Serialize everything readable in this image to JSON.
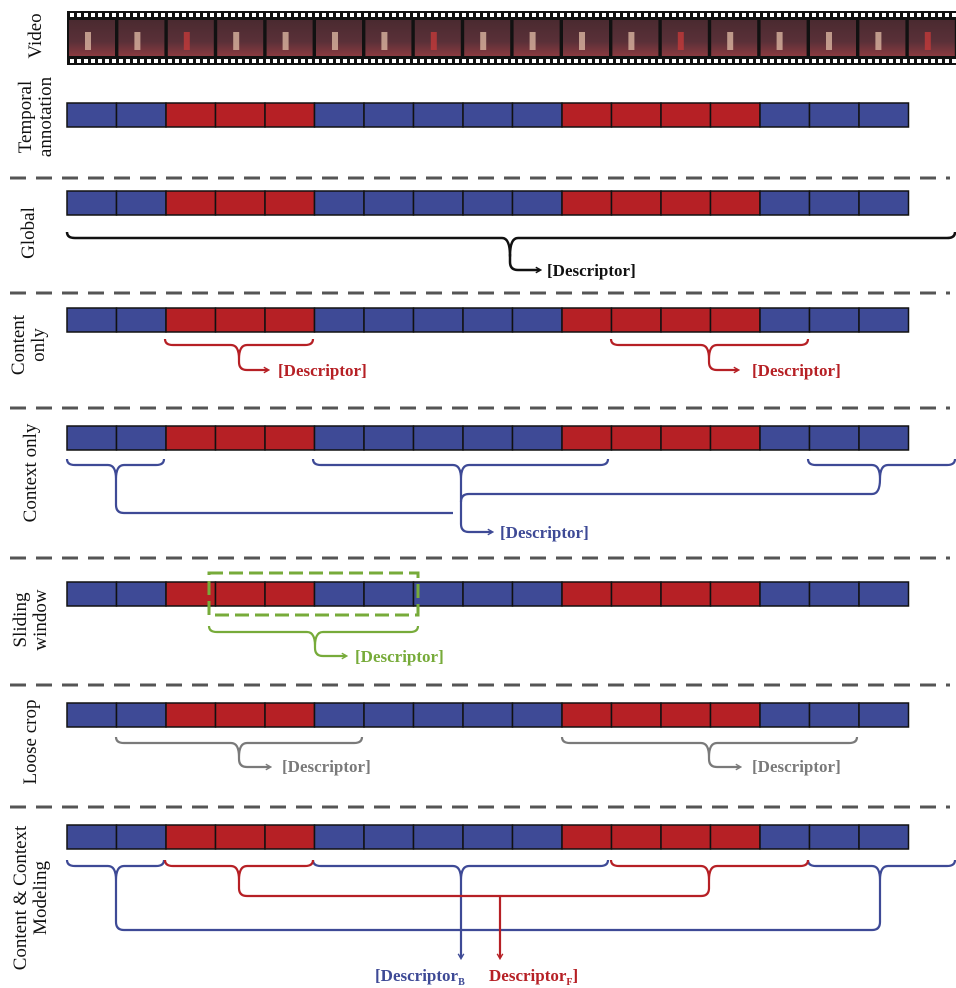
{
  "colors": {
    "background": "#3e4a96",
    "foreground": "#b62025",
    "global": "#111111",
    "content": "#b62025",
    "context": "#3e4a96",
    "sliding": "#77ab3a",
    "loose": "#7a7a7a",
    "separator": "#555555"
  },
  "annotation": [
    "B",
    "B",
    "F",
    "F",
    "F",
    "B",
    "B",
    "B",
    "B",
    "B",
    "F",
    "F",
    "F",
    "F",
    "B",
    "B",
    "B"
  ],
  "rows": {
    "video": {
      "label": [
        "Video"
      ]
    },
    "temporal": {
      "label": [
        "Temporal",
        "annotation"
      ]
    },
    "global": {
      "label": [
        "Global"
      ],
      "descriptor": "[Descriptor]"
    },
    "content_only": {
      "label": [
        "Content",
        "only"
      ],
      "descriptor": "[Descriptor]"
    },
    "context_only": {
      "label": [
        "Context only"
      ],
      "descriptor": "[Descriptor]"
    },
    "sliding": {
      "label": [
        "Sliding",
        "window"
      ],
      "descriptor": "[Descriptor]"
    },
    "loose": {
      "label": [
        "Loose crop"
      ],
      "descriptor": "[Descriptor]"
    },
    "cc_modeling": {
      "label": [
        "Content & Context",
        "Modeling"
      ],
      "descriptor_b": "[Descriptor",
      "descriptor_b_sub": "B",
      "descriptor_f": "Descriptor",
      "descriptor_f_sub": "F",
      "descriptor_f_end": "]"
    }
  }
}
